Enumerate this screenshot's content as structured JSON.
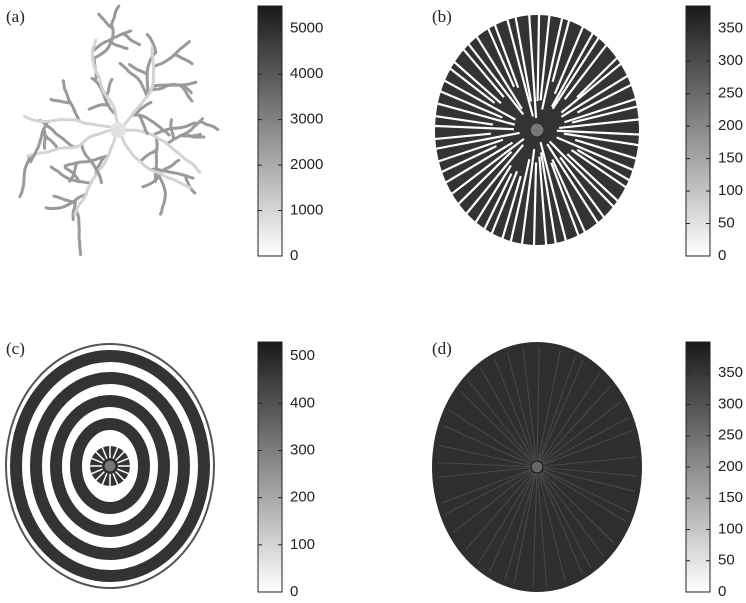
{
  "panels": [
    {
      "label": "(a)",
      "colorbar": {
        "lim": [
          0,
          5500
        ],
        "ticks": [
          0,
          1000,
          2000,
          3000,
          4000,
          5000
        ]
      }
    },
    {
      "label": "(b)",
      "colorbar": {
        "lim": [
          0,
          385
        ],
        "ticks": [
          0,
          50,
          100,
          150,
          200,
          250,
          300,
          350
        ]
      }
    },
    {
      "label": "(c)",
      "colorbar": {
        "lim": [
          0,
          530
        ],
        "ticks": [
          0,
          100,
          200,
          300,
          400,
          500
        ]
      }
    },
    {
      "label": "(d)",
      "colorbar": {
        "lim": [
          0,
          400
        ],
        "ticks": [
          0,
          50,
          100,
          150,
          200,
          250,
          300,
          350
        ]
      }
    }
  ]
}
